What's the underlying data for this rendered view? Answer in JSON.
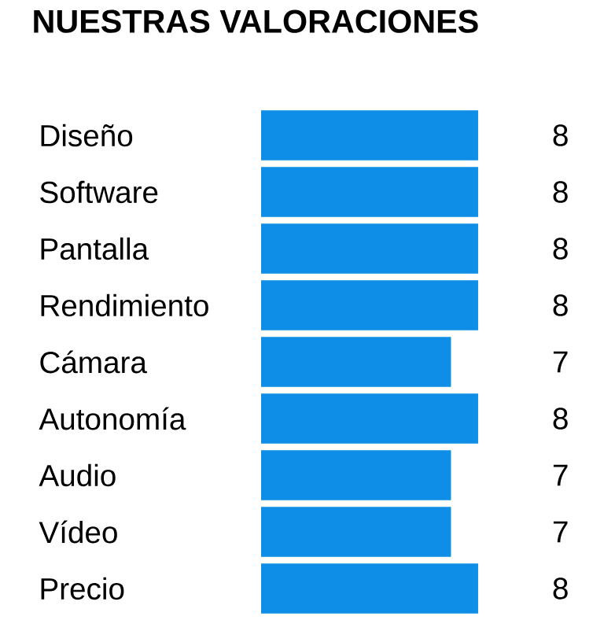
{
  "chart_data": {
    "type": "bar",
    "orientation": "horizontal",
    "title": "NUESTRAS VALORACIONES",
    "categories": [
      "Diseño",
      "Software",
      "Pantalla",
      "Rendimiento",
      "Cámara",
      "Autonomía",
      "Audio",
      "Vídeo",
      "Precio"
    ],
    "values": [
      8,
      8,
      8,
      8,
      7,
      8,
      7,
      7,
      8
    ],
    "color": "#0e8ee6",
    "data_labels": true
  }
}
